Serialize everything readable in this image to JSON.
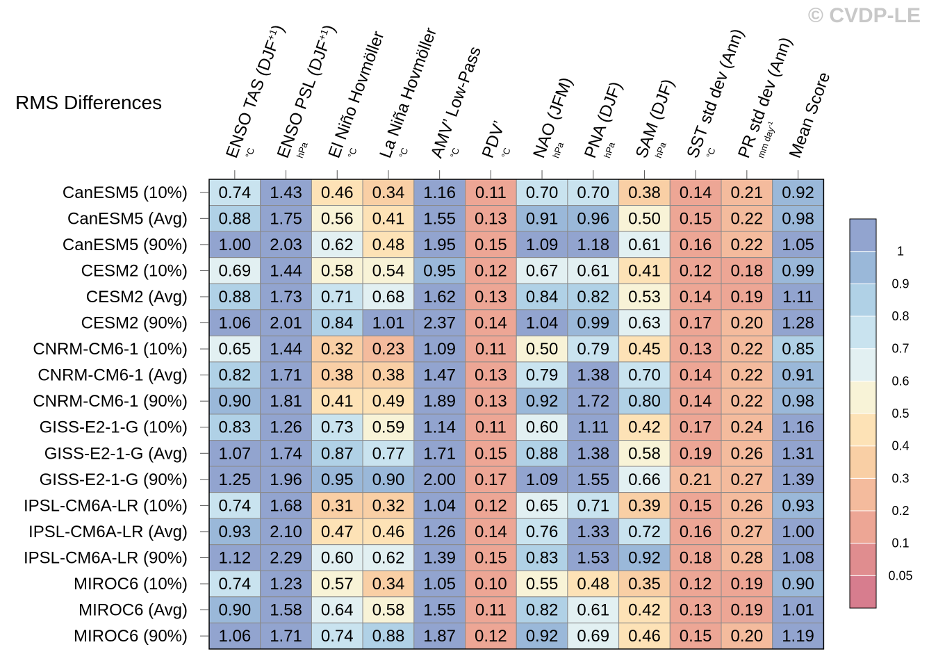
{
  "watermark": "© CVDP-LE",
  "chart_data": {
    "type": "heatmap",
    "title": "RMS Differences",
    "columns": [
      {
        "label": "ENSO TAS (DJF",
        "sup": "+1",
        "tail": ")",
        "unit": "°C"
      },
      {
        "label": "ENSO PSL (DJF",
        "sup": "+1",
        "tail": ")",
        "unit": "hPa"
      },
      {
        "label": "El Niño Hovmöller",
        "unit": "°C"
      },
      {
        "label": "La Niña Hovmöller",
        "unit": "°C"
      },
      {
        "label": "AMV’ Low-Pass",
        "unit": "°C"
      },
      {
        "label": "PDV’",
        "unit": "°C"
      },
      {
        "label": "NAO (JFM)",
        "unit": "hPa"
      },
      {
        "label": "PNA (DJF)",
        "unit": "hPa"
      },
      {
        "label": "SAM (DJF)",
        "unit": "hPa"
      },
      {
        "label": "SST std dev (Ann)",
        "unit": "°C"
      },
      {
        "label": "PR std dev (Ann)",
        "unit": "mm day",
        "unit_sup": "-1"
      },
      {
        "label": "Mean Score",
        "unit": ""
      }
    ],
    "rows": [
      "CanESM5 (10%)",
      "CanESM5 (Avg)",
      "CanESM5 (90%)",
      "CESM2 (10%)",
      "CESM2 (Avg)",
      "CESM2 (90%)",
      "CNRM-CM6-1 (10%)",
      "CNRM-CM6-1 (Avg)",
      "CNRM-CM6-1 (90%)",
      "GISS-E2-1-G (10%)",
      "GISS-E2-1-G (Avg)",
      "GISS-E2-1-G (90%)",
      "IPSL-CM6A-LR (10%)",
      "IPSL-CM6A-LR (Avg)",
      "IPSL-CM6A-LR (90%)",
      "MIROC6 (10%)",
      "MIROC6 (Avg)",
      "MIROC6 (90%)"
    ],
    "values": [
      [
        "0.74",
        "1.43",
        "0.46",
        "0.34",
        "1.16",
        "0.11",
        "0.70",
        "0.70",
        "0.38",
        "0.14",
        "0.21",
        "0.92"
      ],
      [
        "0.88",
        "1.75",
        "0.56",
        "0.41",
        "1.55",
        "0.13",
        "0.91",
        "0.96",
        "0.50",
        "0.15",
        "0.22",
        "0.98"
      ],
      [
        "1.00",
        "2.03",
        "0.62",
        "0.48",
        "1.95",
        "0.15",
        "1.09",
        "1.18",
        "0.61",
        "0.16",
        "0.22",
        "1.05"
      ],
      [
        "0.69",
        "1.44",
        "0.58",
        "0.54",
        "0.95",
        "0.12",
        "0.67",
        "0.61",
        "0.41",
        "0.12",
        "0.18",
        "0.99"
      ],
      [
        "0.88",
        "1.73",
        "0.71",
        "0.68",
        "1.62",
        "0.13",
        "0.84",
        "0.82",
        "0.53",
        "0.14",
        "0.19",
        "1.11"
      ],
      [
        "1.06",
        "2.01",
        "0.84",
        "1.01",
        "2.37",
        "0.14",
        "1.04",
        "0.99",
        "0.63",
        "0.17",
        "0.20",
        "1.28"
      ],
      [
        "0.65",
        "1.44",
        "0.32",
        "0.23",
        "1.09",
        "0.11",
        "0.50",
        "0.79",
        "0.45",
        "0.13",
        "0.22",
        "0.85"
      ],
      [
        "0.82",
        "1.71",
        "0.38",
        "0.38",
        "1.47",
        "0.13",
        "0.79",
        "1.38",
        "0.70",
        "0.14",
        "0.22",
        "0.91"
      ],
      [
        "0.90",
        "1.81",
        "0.41",
        "0.49",
        "1.89",
        "0.13",
        "0.92",
        "1.72",
        "0.80",
        "0.14",
        "0.22",
        "0.98"
      ],
      [
        "0.83",
        "1.26",
        "0.73",
        "0.59",
        "1.14",
        "0.11",
        "0.60",
        "1.11",
        "0.42",
        "0.17",
        "0.24",
        "1.16"
      ],
      [
        "1.07",
        "1.74",
        "0.87",
        "0.77",
        "1.71",
        "0.15",
        "0.88",
        "1.38",
        "0.58",
        "0.19",
        "0.26",
        "1.31"
      ],
      [
        "1.25",
        "1.96",
        "0.95",
        "0.90",
        "2.00",
        "0.17",
        "1.09",
        "1.55",
        "0.66",
        "0.21",
        "0.27",
        "1.39"
      ],
      [
        "0.74",
        "1.68",
        "0.31",
        "0.32",
        "1.04",
        "0.12",
        "0.65",
        "0.71",
        "0.39",
        "0.15",
        "0.26",
        "0.93"
      ],
      [
        "0.93",
        "2.10",
        "0.47",
        "0.46",
        "1.26",
        "0.14",
        "0.76",
        "1.33",
        "0.72",
        "0.16",
        "0.27",
        "1.00"
      ],
      [
        "1.12",
        "2.29",
        "0.60",
        "0.62",
        "1.39",
        "0.15",
        "0.83",
        "1.53",
        "0.92",
        "0.18",
        "0.28",
        "1.08"
      ],
      [
        "0.74",
        "1.23",
        "0.57",
        "0.34",
        "1.05",
        "0.10",
        "0.55",
        "0.48",
        "0.35",
        "0.12",
        "0.19",
        "0.90"
      ],
      [
        "0.90",
        "1.58",
        "0.64",
        "0.58",
        "1.55",
        "0.11",
        "0.82",
        "0.61",
        "0.42",
        "0.13",
        "0.19",
        "1.01"
      ],
      [
        "1.06",
        "1.71",
        "0.74",
        "0.88",
        "1.87",
        "0.12",
        "0.92",
        "0.69",
        "0.46",
        "0.15",
        "0.20",
        "1.19"
      ]
    ],
    "colorbar": {
      "tick_labels": [
        "1",
        "0.9",
        "0.8",
        "0.7",
        "0.6",
        "0.5",
        "0.4",
        "0.3",
        "0.2",
        "0.1",
        "0.05"
      ],
      "bin_colors": [
        "#d77d8e",
        "#e08d8f",
        "#eda695",
        "#f4bb9d",
        "#f9cfa5",
        "#fde2b6",
        "#f8f3d7",
        "#e2f0f2",
        "#c9e3ef",
        "#b0d1e6",
        "#9ab8d9",
        "#92a4cf"
      ]
    }
  }
}
